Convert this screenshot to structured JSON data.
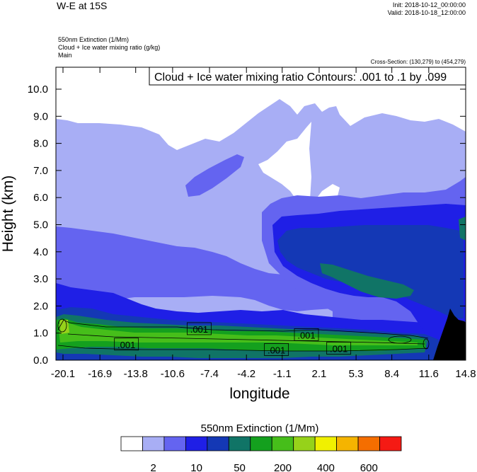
{
  "header": {
    "title": "W-E at 15S",
    "init": "Init: 2018-10-12_00:00:00",
    "valid": "Valid: 2018-10-18_12:00:00",
    "fill_label": "550nm Extinction   (1/Mm)",
    "contour_label": "Cloud + Ice water mixing ratio   (g/kg)",
    "domain_label": "Main",
    "cross_section": "Cross-Section: (130,279) to (454,279)",
    "contour_info": "Cloud + Ice water mixing ratio Contours: .001 to .1 by .099"
  },
  "chart_data": {
    "type": "heatmap",
    "xlabel": "longitude",
    "ylabel": "Height (km)",
    "xlim": [
      -20.1,
      14.8
    ],
    "ylim": [
      0,
      10.8
    ],
    "x_ticks": [
      "-20.1",
      "-16.9",
      "-13.8",
      "-10.6",
      "-7.4",
      "-4.2",
      "-1.1",
      "2.1",
      "5.3",
      "8.4",
      "11.6",
      "14.8"
    ],
    "x_tick_values": [
      -20.1,
      -16.9,
      -13.8,
      -10.6,
      -7.4,
      -4.2,
      -1.1,
      2.1,
      5.3,
      8.4,
      11.6,
      14.8
    ],
    "y_ticks": [
      "0.0",
      "1.0",
      "2.0",
      "3.0",
      "4.0",
      "5.0",
      "6.0",
      "7.0",
      "8.0",
      "9.0",
      "10.0"
    ],
    "y_tick_values": [
      0,
      1,
      2,
      3,
      4,
      5,
      6,
      7,
      8,
      9,
      10
    ],
    "contour_labels": [
      {
        "text": ".001",
        "x": -8.3,
        "y": 1.15
      },
      {
        "text": ".001",
        "x": -14.6,
        "y": 0.58
      },
      {
        "text": ".001",
        "x": 1.0,
        "y": 0.93
      },
      {
        "text": ".001",
        "x": -1.6,
        "y": 0.38
      },
      {
        "text": ".001",
        "x": 3.8,
        "y": 0.43
      }
    ],
    "colorbar": {
      "title": "550nm Extinction  (1/Mm)",
      "colors": [
        "#ffffff",
        "#a8aef5",
        "#6464f0",
        "#1f1fe6",
        "#1438b5",
        "#107466",
        "#14a01e",
        "#46be1a",
        "#96d21a",
        "#f0f000",
        "#f5b400",
        "#f56e00",
        "#f51a14"
      ],
      "tick_labels": [
        "2",
        "10",
        "50",
        "200",
        "400",
        "600"
      ]
    }
  }
}
